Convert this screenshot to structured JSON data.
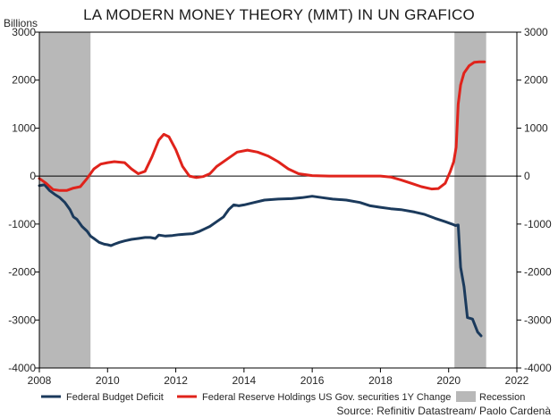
{
  "chart_data": {
    "type": "line",
    "title": "LA MODERN MONEY THEORY (MMT) IN UN GRAFICO",
    "unit_label": "Billions",
    "source": "Source: Refinitiv Datastream/ Paolo Cardenà",
    "xlim": [
      2008,
      2022
    ],
    "ylim": [
      -4000,
      3000
    ],
    "x_ticks": [
      2008,
      2010,
      2012,
      2014,
      2016,
      2018,
      2020,
      2022
    ],
    "y_ticks": [
      -4000,
      -3000,
      -2000,
      -1000,
      0,
      1000,
      2000,
      3000
    ],
    "grid": false,
    "zero_line": true,
    "legend_position": "bottom",
    "recessions": [
      {
        "name": "Recession",
        "start": 2008.0,
        "end": 2009.5,
        "color": "#b8b8b8"
      },
      {
        "name": "Recession",
        "start": 2020.17,
        "end": 2021.1,
        "color": "#b8b8b8"
      }
    ],
    "series": [
      {
        "name": "Federal Budget Deficit",
        "color": "#1b3a5c",
        "x": [
          2008.0,
          2008.15,
          2008.3,
          2008.45,
          2008.6,
          2008.75,
          2008.9,
          2009.0,
          2009.1,
          2009.25,
          2009.4,
          2009.5,
          2009.6,
          2009.75,
          2009.9,
          2010.0,
          2010.1,
          2010.2,
          2010.35,
          2010.5,
          2010.7,
          2010.9,
          2011.1,
          2011.25,
          2011.4,
          2011.5,
          2011.7,
          2011.9,
          2012.1,
          2012.3,
          2012.5,
          2012.7,
          2012.85,
          2013.0,
          2013.2,
          2013.4,
          2013.55,
          2013.7,
          2013.85,
          2014.0,
          2014.3,
          2014.6,
          2015.0,
          2015.4,
          2015.7,
          2016.0,
          2016.3,
          2016.6,
          2017.0,
          2017.4,
          2017.7,
          2018.0,
          2018.3,
          2018.6,
          2019.0,
          2019.3,
          2019.6,
          2019.9,
          2020.1,
          2020.2,
          2020.28,
          2020.35,
          2020.45,
          2020.55,
          2020.7,
          2020.85,
          2020.95
        ],
        "values": [
          -200,
          -180,
          -300,
          -380,
          -450,
          -550,
          -700,
          -850,
          -900,
          -1050,
          -1150,
          -1250,
          -1300,
          -1380,
          -1420,
          -1430,
          -1450,
          -1420,
          -1380,
          -1350,
          -1320,
          -1300,
          -1280,
          -1280,
          -1300,
          -1230,
          -1250,
          -1240,
          -1220,
          -1210,
          -1200,
          -1150,
          -1100,
          -1050,
          -950,
          -850,
          -700,
          -600,
          -620,
          -600,
          -550,
          -500,
          -480,
          -470,
          -450,
          -420,
          -450,
          -480,
          -500,
          -550,
          -620,
          -650,
          -680,
          -700,
          -750,
          -800,
          -880,
          -950,
          -1000,
          -1030,
          -1020,
          -1900,
          -2300,
          -2950,
          -2980,
          -3250,
          -3330
        ]
      },
      {
        "name": "Federal Reserve Holdings US Gov. securities 1Y Change",
        "color": "#e0231b",
        "x": [
          2008.0,
          2008.2,
          2008.4,
          2008.6,
          2008.8,
          2009.0,
          2009.2,
          2009.4,
          2009.6,
          2009.8,
          2010.0,
          2010.2,
          2010.5,
          2010.7,
          2010.9,
          2011.1,
          2011.3,
          2011.5,
          2011.65,
          2011.8,
          2012.0,
          2012.2,
          2012.4,
          2012.6,
          2012.8,
          2013.0,
          2013.2,
          2013.5,
          2013.8,
          2014.1,
          2014.4,
          2014.7,
          2015.0,
          2015.3,
          2015.6,
          2016.0,
          2016.5,
          2017.0,
          2017.5,
          2018.0,
          2018.3,
          2018.6,
          2018.9,
          2019.2,
          2019.5,
          2019.7,
          2019.9,
          2020.05,
          2020.15,
          2020.22,
          2020.28,
          2020.35,
          2020.45,
          2020.6,
          2020.75,
          2020.9,
          2021.05
        ],
        "values": [
          -50,
          -150,
          -280,
          -300,
          -300,
          -250,
          -220,
          -50,
          150,
          250,
          280,
          300,
          280,
          150,
          50,
          100,
          400,
          750,
          870,
          820,
          550,
          200,
          0,
          -30,
          -10,
          50,
          200,
          350,
          500,
          540,
          500,
          420,
          300,
          150,
          50,
          10,
          0,
          0,
          0,
          0,
          -20,
          -80,
          -150,
          -220,
          -270,
          -260,
          -150,
          100,
          300,
          600,
          1500,
          1900,
          2150,
          2300,
          2370,
          2380,
          2380
        ]
      }
    ]
  }
}
